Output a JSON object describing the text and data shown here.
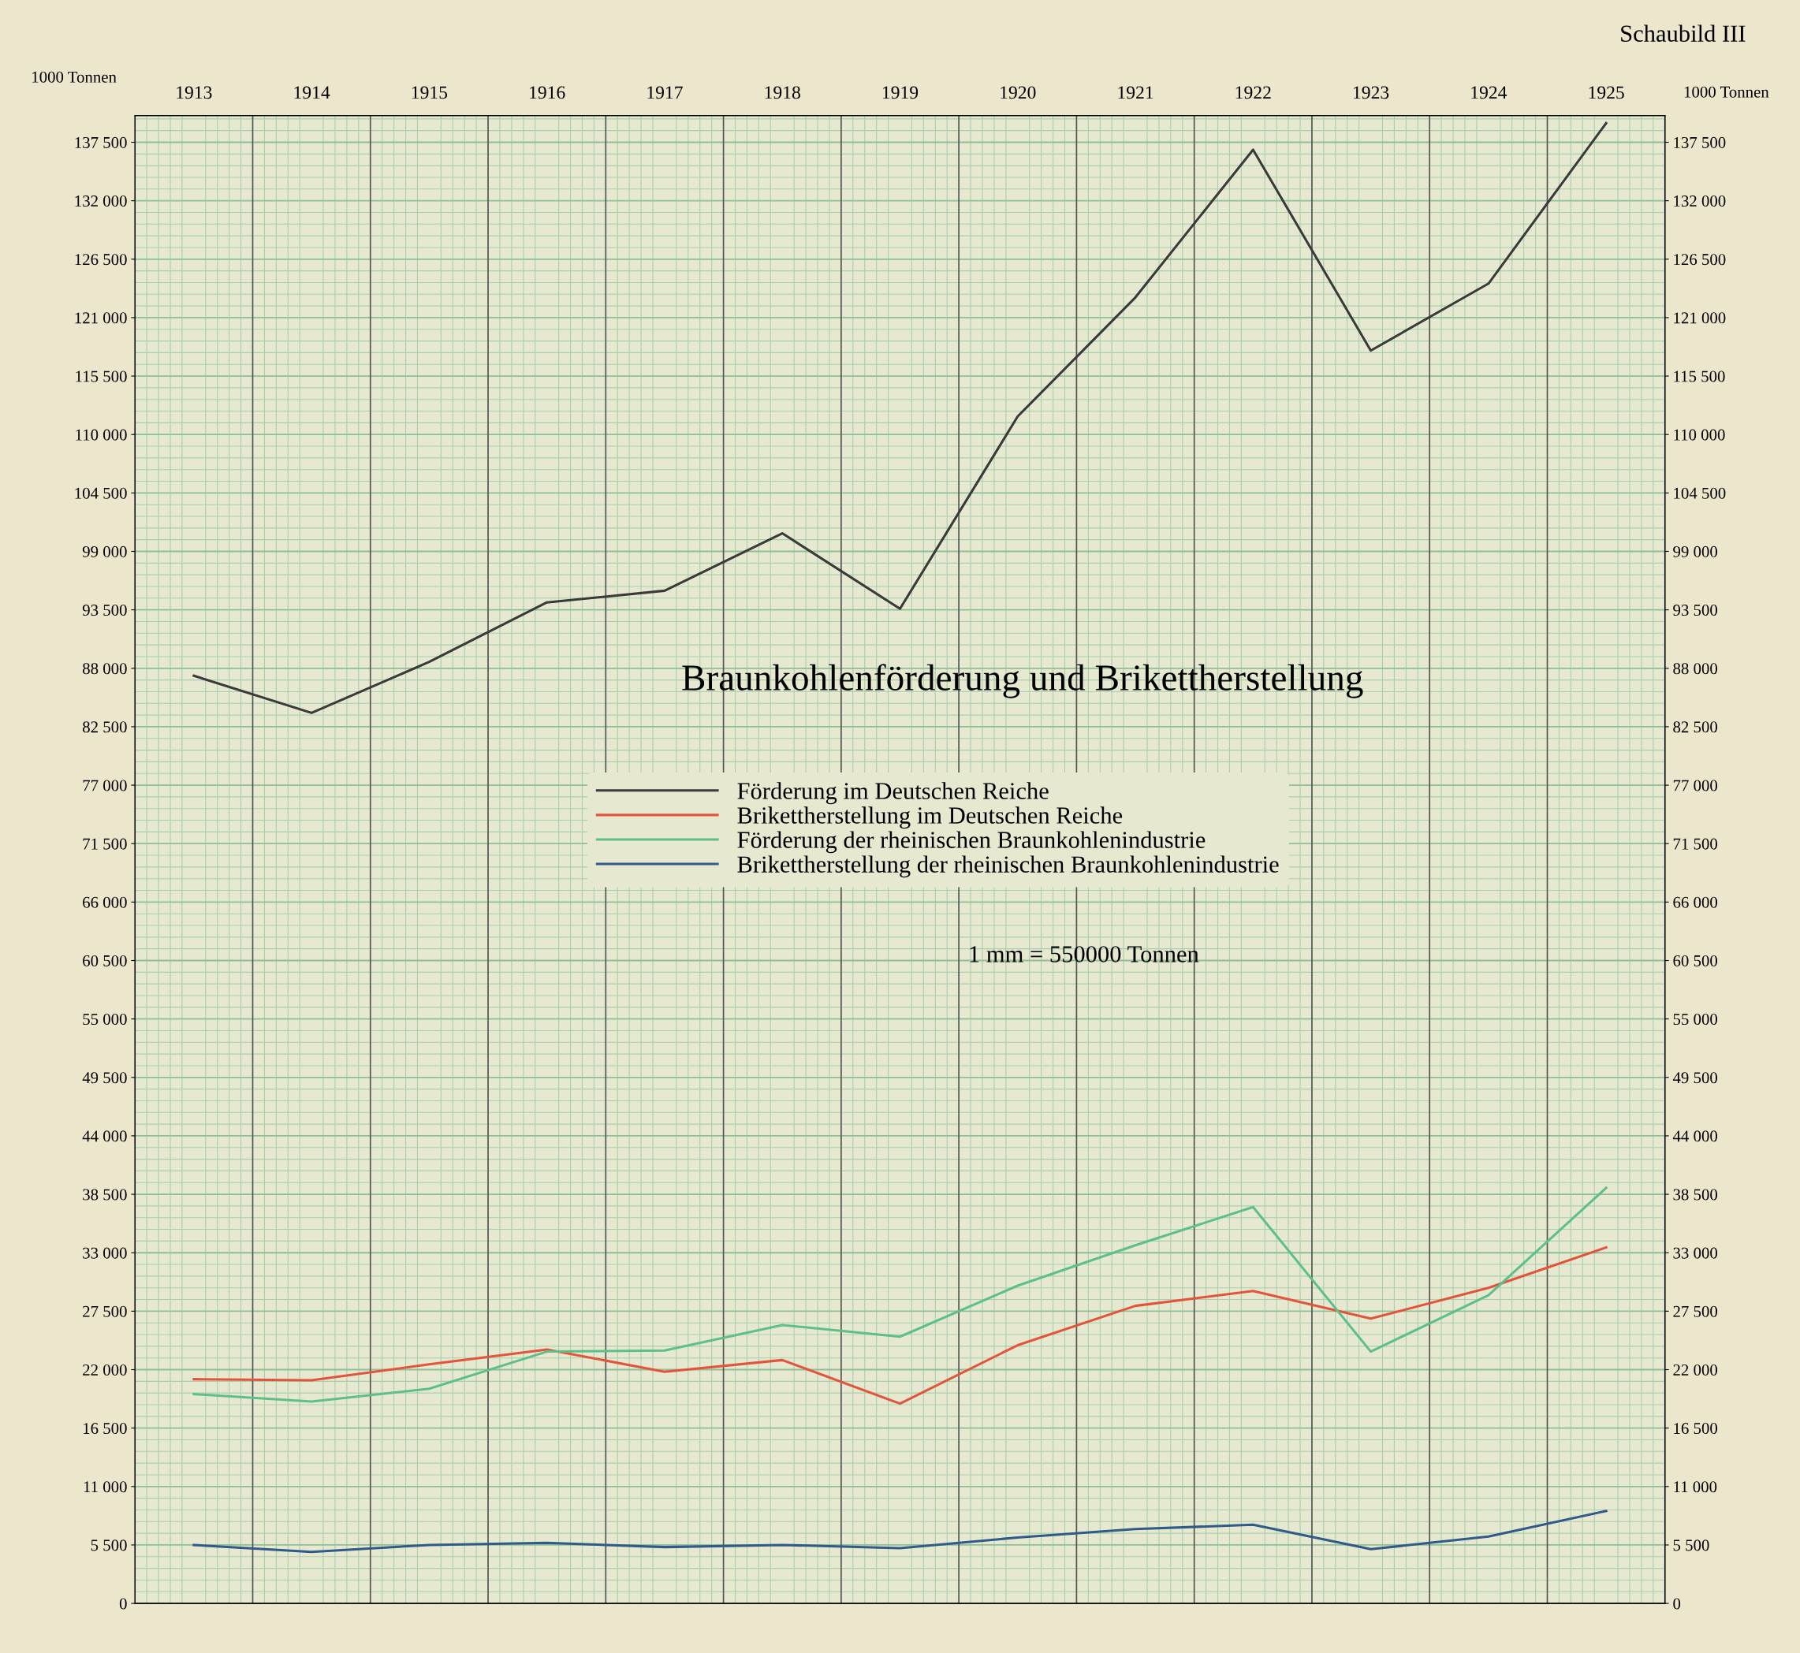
{
  "chart_data": {
    "type": "line",
    "title": "Braunkohlenförderung und Brikettherstellung",
    "ylabel": "1000 Tonnen",
    "y2label": "1000 Tonnen",
    "annotations": [
      "1 mm = 550000 Tonnen",
      "Schaubild III"
    ],
    "categories": [
      "1913",
      "1914",
      "1915",
      "1916",
      "1917",
      "1918",
      "1919",
      "1920",
      "1921",
      "1922",
      "1923",
      "1924",
      "1925"
    ],
    "series": [
      {
        "name": "Förderung im Deutschen Reiche",
        "color": "#3a3a3a",
        "values": [
          87300,
          83800,
          88600,
          94200,
          95300,
          100700,
          93600,
          111700,
          122900,
          136800,
          117900,
          124200,
          139300
        ]
      },
      {
        "name": "Brikettherstellung im Deutschen Reiche",
        "color": "#e0553c",
        "values": [
          21100,
          21000,
          22500,
          23900,
          21800,
          22900,
          18800,
          24300,
          28000,
          29400,
          26800,
          29700,
          33500
        ]
      },
      {
        "name": "Förderung der rheinischen Braunkohlenindustrie",
        "color": "#5fbf8a",
        "values": [
          19700,
          19000,
          20200,
          23700,
          23800,
          26200,
          25100,
          29900,
          33700,
          37300,
          23700,
          29000,
          39100
        ]
      },
      {
        "name": "Brikettherstellung der rheinischen Braunkohlenindustrie",
        "color": "#2f5a8a",
        "values": [
          5500,
          4850,
          5500,
          5700,
          5300,
          5500,
          5200,
          6200,
          7000,
          7400,
          5100,
          6300,
          8700
        ]
      }
    ],
    "ylim": [
      0,
      140000
    ],
    "yticks": [
      0,
      {
        "value": 5500,
        "label": "5 500"
      },
      {
        "value": 11000,
        "label": "11 000"
      },
      {
        "value": 16500,
        "label": "16 500"
      },
      {
        "value": 22000,
        "label": "22 000"
      },
      {
        "value": 27500,
        "label": "27 500"
      },
      {
        "value": 33000,
        "label": "33 000"
      },
      {
        "value": 38500,
        "label": "38 500"
      },
      {
        "value": 44000,
        "label": "44 000"
      },
      {
        "value": 49500,
        "label": "49 500"
      },
      {
        "value": 55000,
        "label": "55 000"
      },
      {
        "value": 60500,
        "label": "60 500"
      },
      {
        "value": 66000,
        "label": "66 000"
      },
      {
        "value": 71500,
        "label": "71 500"
      },
      {
        "value": 77000,
        "label": "77 000"
      },
      {
        "value": 82500,
        "label": "82 500"
      },
      {
        "value": 88000,
        "label": "88 000"
      },
      {
        "value": 93500,
        "label": "93 500"
      },
      {
        "value": 99000,
        "label": "99 000"
      },
      {
        "value": 104500,
        "label": "104 500"
      },
      {
        "value": 110000,
        "label": "110 000"
      },
      {
        "value": 115500,
        "label": "115 500"
      },
      {
        "value": 121000,
        "label": "121 000"
      },
      {
        "value": 126500,
        "label": "126 500"
      },
      {
        "value": 132000,
        "label": "132 000"
      },
      {
        "value": 137500,
        "label": "137 500"
      }
    ],
    "y2lim": [
      0,
      140000
    ],
    "y2ticks": [
      0,
      {
        "value": 5500,
        "label": "5 500"
      },
      {
        "value": 11000,
        "label": "11 000"
      },
      {
        "value": 16500,
        "label": "16 500"
      },
      {
        "value": 22000,
        "label": "22 000"
      },
      {
        "value": 27500,
        "label": "27 500"
      },
      {
        "value": 33000,
        "label": "33 000"
      },
      {
        "value": 38500,
        "label": "38 500"
      },
      {
        "value": 44000,
        "label": "44 000"
      },
      {
        "value": 49500,
        "label": "49 500"
      },
      {
        "value": 55000,
        "label": "55 000"
      },
      {
        "value": 60500,
        "label": "60 500"
      },
      {
        "value": 66000,
        "label": "66 000"
      },
      {
        "value": 71500,
        "label": "71 500"
      },
      {
        "value": 77000,
        "label": "77 000"
      },
      {
        "value": 82500,
        "label": "82 500"
      },
      {
        "value": 88000,
        "label": "88 000"
      },
      {
        "value": 93500,
        "label": "93 500"
      },
      {
        "value": 99000,
        "label": "99 000"
      },
      {
        "value": 104500,
        "label": "104 500"
      },
      {
        "value": 110000,
        "label": "110 000"
      },
      {
        "value": 115500,
        "label": "115 500"
      },
      {
        "value": 121000,
        "label": "121 000"
      },
      {
        "value": 126500,
        "label": "126 500"
      },
      {
        "value": 132000,
        "label": "132 000"
      },
      {
        "value": 137500,
        "label": "137 500"
      }
    ],
    "grid": true,
    "legend": "center",
    "marker": "none",
    "line_style": "solid"
  }
}
